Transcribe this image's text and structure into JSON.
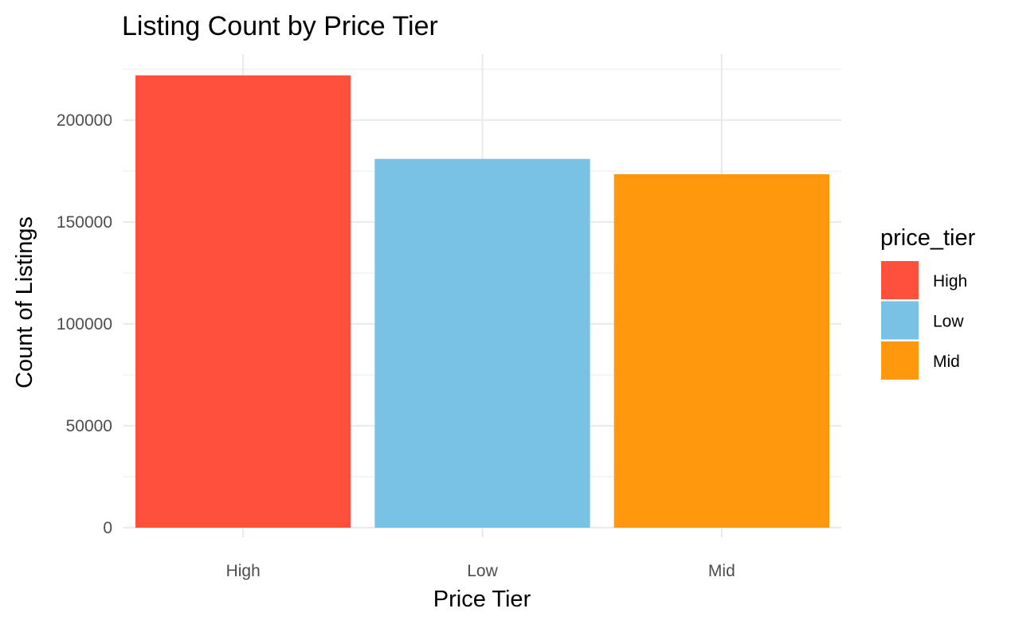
{
  "chart_data": {
    "type": "bar",
    "title": "Listing Count by Price Tier",
    "xlabel": "Price Tier",
    "ylabel": "Count of Listings",
    "categories": [
      "High",
      "Low",
      "Mid"
    ],
    "values": [
      222000,
      181000,
      173500
    ],
    "colors": [
      "#FF4F3D",
      "#7AC2E5",
      "#FF980D"
    ],
    "ylim": [
      0,
      235000
    ],
    "yticks": [
      0,
      50000,
      100000,
      150000,
      200000
    ],
    "ytick_labels": [
      "0",
      "50000",
      "100000",
      "150000",
      "200000"
    ],
    "grid": true,
    "legend": {
      "title": "price_tier",
      "position": "right",
      "entries": [
        "High",
        "Low",
        "Mid"
      ]
    }
  }
}
